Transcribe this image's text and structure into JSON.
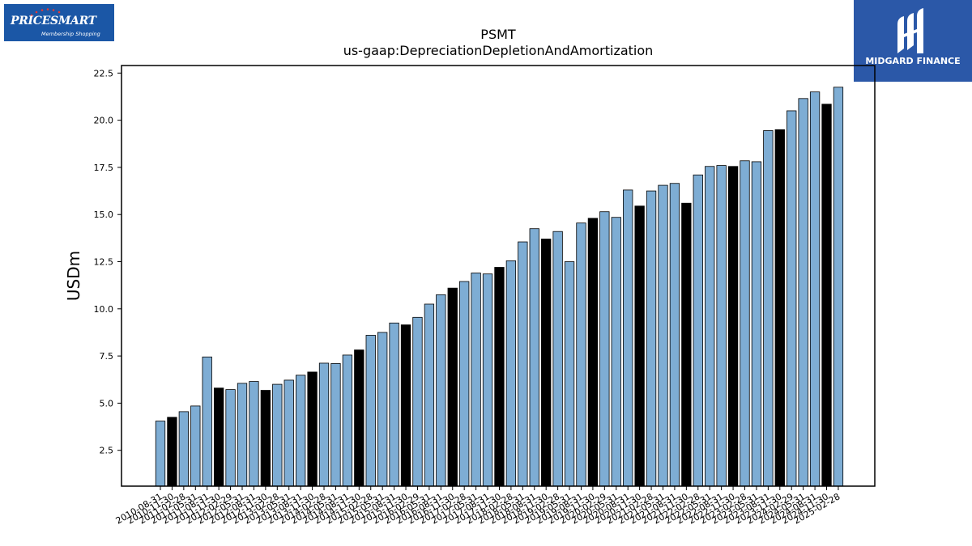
{
  "header": {
    "company_logo": {
      "brand": "PRICESMART",
      "tagline": "Membership Shopping"
    },
    "publisher_logo": {
      "name": "MIDGARD FINANCE"
    }
  },
  "chart_data": {
    "type": "bar",
    "title": "PSMT",
    "subtitle": "us-gaap:DepreciationDepletionAndAmortization",
    "xlabel": "",
    "ylabel": "USDm",
    "ylim": [
      0.6,
      22.9
    ],
    "yticks": [
      2.5,
      5.0,
      7.5,
      10.0,
      12.5,
      15.0,
      17.5,
      20.0,
      22.5
    ],
    "grid": false,
    "colors": {
      "quarter": "#7eadd4",
      "fiscal_year_end": "#000000",
      "edge": "#000000"
    },
    "categories": [
      "2010-08-31",
      "2010-11-30",
      "2011-02-28",
      "2011-05-31",
      "2011-08-31",
      "2011-11-30",
      "2012-02-29",
      "2012-05-31",
      "2012-08-31",
      "2012-11-30",
      "2013-02-28",
      "2013-05-31",
      "2013-08-31",
      "2013-11-30",
      "2014-02-28",
      "2014-05-31",
      "2014-08-31",
      "2014-11-30",
      "2015-02-28",
      "2015-05-31",
      "2015-08-31",
      "2015-11-30",
      "2016-02-29",
      "2016-05-31",
      "2016-08-31",
      "2016-11-30",
      "2017-02-28",
      "2017-05-31",
      "2017-08-31",
      "2017-11-30",
      "2018-02-28",
      "2018-05-31",
      "2018-08-31",
      "2018-11-30",
      "2019-02-28",
      "2019-05-31",
      "2019-08-31",
      "2019-11-30",
      "2020-02-29",
      "2020-05-31",
      "2020-08-31",
      "2020-11-30",
      "2021-02-28",
      "2021-05-31",
      "2021-08-31",
      "2021-11-30",
      "2022-02-28",
      "2022-05-31",
      "2022-08-31",
      "2022-11-30",
      "2023-02-28",
      "2023-05-31",
      "2023-08-31",
      "2023-11-30",
      "2024-02-29",
      "2024-05-31",
      "2024-08-31",
      "2024-11-30",
      "2025-02-28"
    ],
    "values": [
      4.05,
      4.25,
      4.55,
      4.85,
      7.45,
      5.8,
      5.72,
      6.05,
      6.15,
      5.68,
      6.0,
      6.22,
      6.48,
      6.65,
      7.12,
      7.1,
      7.55,
      7.82,
      8.6,
      8.75,
      9.25,
      9.15,
      9.55,
      10.25,
      10.75,
      11.1,
      11.45,
      11.9,
      11.85,
      12.2,
      12.55,
      13.55,
      14.25,
      13.7,
      14.1,
      12.5,
      14.55,
      14.8,
      15.15,
      14.85,
      16.3,
      15.45,
      16.25,
      16.55,
      16.65,
      15.6,
      17.1,
      17.55,
      17.6,
      17.55,
      17.85,
      17.8,
      19.45,
      19.5,
      20.5,
      21.15,
      21.5,
      20.85,
      21.75
    ],
    "fiscal_year_end": [
      false,
      true,
      false,
      false,
      false,
      true,
      false,
      false,
      false,
      true,
      false,
      false,
      false,
      true,
      false,
      false,
      false,
      true,
      false,
      false,
      false,
      true,
      false,
      false,
      false,
      true,
      false,
      false,
      false,
      true,
      false,
      false,
      false,
      true,
      false,
      false,
      false,
      true,
      false,
      false,
      false,
      true,
      false,
      false,
      false,
      true,
      false,
      false,
      false,
      true,
      false,
      false,
      false,
      true,
      false,
      false,
      false,
      true,
      false
    ]
  }
}
